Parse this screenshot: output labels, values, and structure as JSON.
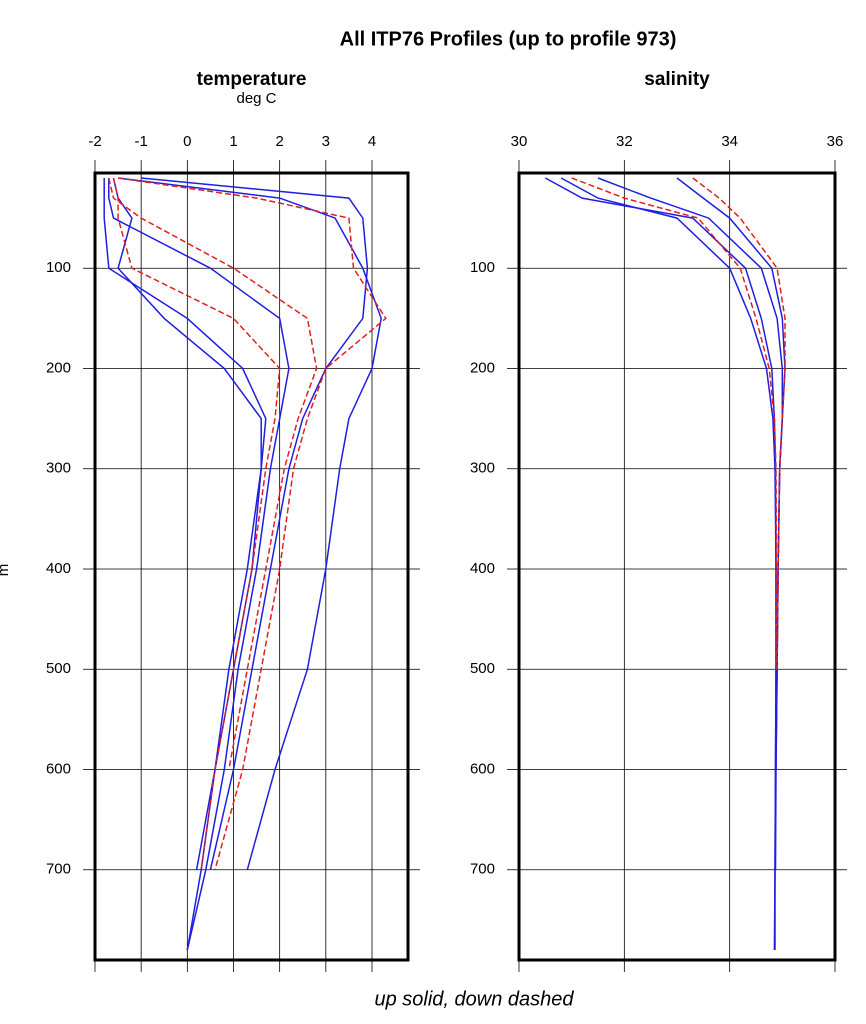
{
  "title": "All ITP76 Profiles (up to profile 973)",
  "ylabel": "m",
  "caption": "up solid, down dashed",
  "chart_data": [
    {
      "type": "line",
      "title": "temperature",
      "subtitle": "deg C",
      "xlim": [
        -2,
        4.78
      ],
      "xticks": [
        -2,
        -1,
        0,
        1,
        2,
        3,
        4
      ],
      "ylim": [
        5,
        790
      ],
      "invert_y": true,
      "yticks": [
        100,
        200,
        300,
        400,
        500,
        600,
        700
      ],
      "grid": true,
      "y": [
        10,
        30,
        50,
        100,
        150,
        200,
        250,
        300,
        400,
        500,
        600,
        700,
        780
      ],
      "series": [
        {
          "color": "#1f1fe0",
          "dashed": false,
          "values": [
            -1.6,
            -1.5,
            -1.2,
            -1.5,
            -0.5,
            0.8,
            1.6,
            1.6,
            1.3,
            0.9,
            0.6,
            0.3,
            0.0
          ]
        },
        {
          "color": "#1f1fe0",
          "dashed": false,
          "values": [
            -1.0,
            3.5,
            3.8,
            3.9,
            3.8,
            3.0,
            2.5,
            2.2,
            1.8,
            1.4,
            1.0,
            0.5,
            null
          ]
        },
        {
          "color": "#1f1fe0",
          "dashed": false,
          "values": [
            -1.7,
            -1.7,
            -1.6,
            0.5,
            2.0,
            2.2,
            2.0,
            1.8,
            1.5,
            1.1,
            0.8,
            0.4,
            0.0
          ]
        },
        {
          "color": "#1f1fe0",
          "dashed": false,
          "values": [
            -1.8,
            -1.8,
            -1.8,
            -1.7,
            0.0,
            1.2,
            1.7,
            1.6,
            1.4,
            1.0,
            0.6,
            0.2,
            null
          ]
        },
        {
          "color": "#1f1fe0",
          "dashed": false,
          "values": [
            -1.5,
            2.0,
            3.2,
            3.8,
            4.2,
            4.0,
            3.5,
            3.3,
            3.0,
            2.6,
            1.9,
            1.3,
            null
          ]
        },
        {
          "color": "#e02020",
          "dashed": true,
          "values": [
            -1.5,
            1.5,
            3.5,
            3.6,
            4.3,
            3.0,
            2.6,
            2.3,
            2.0,
            1.6,
            1.2,
            0.6,
            null
          ]
        },
        {
          "color": "#e02020",
          "dashed": true,
          "values": [
            -1.7,
            -1.6,
            -1.0,
            1.0,
            2.6,
            2.8,
            2.4,
            2.1,
            1.7,
            1.3,
            0.9,
            null,
            null
          ]
        },
        {
          "color": "#e02020",
          "dashed": true,
          "values": [
            -1.6,
            -1.5,
            -1.5,
            -1.2,
            1.0,
            2.0,
            1.9,
            1.7,
            1.4,
            1.0,
            0.6,
            0.3,
            null
          ]
        }
      ]
    },
    {
      "type": "line",
      "title": "salinity",
      "xlim": [
        30,
        36
      ],
      "xticks": [
        30,
        32,
        34,
        36
      ],
      "ylim": [
        5,
        790
      ],
      "invert_y": true,
      "yticks": [
        100,
        200,
        300,
        400,
        500,
        600,
        700
      ],
      "grid": true,
      "y": [
        10,
        30,
        50,
        100,
        150,
        200,
        250,
        300,
        400,
        500,
        600,
        700,
        780
      ],
      "series": [
        {
          "color": "#1f1fe0",
          "dashed": false,
          "values": [
            30.5,
            31.2,
            33.3,
            34.3,
            34.6,
            34.8,
            34.85,
            34.87,
            34.88,
            34.88,
            34.87,
            34.86,
            34.86
          ]
        },
        {
          "color": "#1f1fe0",
          "dashed": false,
          "values": [
            31.5,
            32.5,
            33.6,
            34.6,
            34.9,
            35.0,
            35.0,
            34.95,
            34.92,
            34.9,
            34.88,
            34.87,
            null
          ]
        },
        {
          "color": "#1f1fe0",
          "dashed": false,
          "values": [
            33.0,
            33.5,
            34.0,
            34.8,
            35.0,
            35.05,
            35.0,
            34.95,
            34.92,
            34.9,
            34.88,
            null,
            null
          ]
        },
        {
          "color": "#1f1fe0",
          "dashed": false,
          "values": [
            30.8,
            31.5,
            33.0,
            34.0,
            34.4,
            34.7,
            34.82,
            34.86,
            34.88,
            34.88,
            34.87,
            34.86,
            34.85
          ]
        },
        {
          "color": "#e02020",
          "dashed": true,
          "values": [
            31.0,
            32.0,
            33.4,
            34.2,
            34.5,
            34.75,
            34.85,
            34.88,
            34.89,
            34.88,
            null,
            null,
            null
          ]
        },
        {
          "color": "#e02020",
          "dashed": true,
          "values": [
            33.3,
            33.8,
            34.2,
            34.9,
            35.05,
            35.05,
            35.0,
            34.95,
            34.92,
            34.9,
            null,
            null,
            null
          ]
        }
      ]
    }
  ]
}
